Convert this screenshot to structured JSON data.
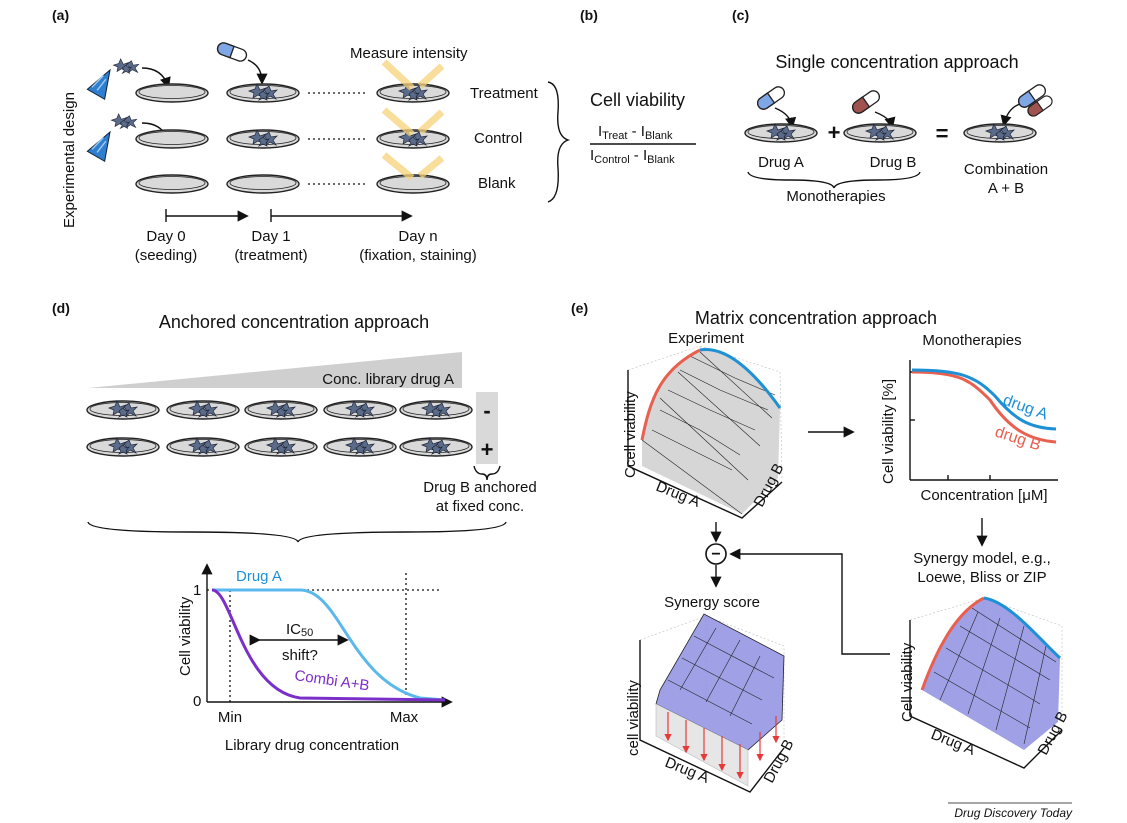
{
  "panels": {
    "a": "(a)",
    "b": "(b)",
    "c": "(c)",
    "d": "(d)",
    "e": "(e)"
  },
  "panel_a": {
    "side_label": "Experimental design",
    "measure": "Measure intensity",
    "rows": [
      "Treatment",
      "Control",
      "Blank"
    ],
    "days": [
      {
        "day": "Day 0",
        "note": "(seeding)"
      },
      {
        "day": "Day 1",
        "note": "(treatment)"
      },
      {
        "day": "Day n",
        "note": "(fixation, staining)"
      }
    ]
  },
  "panel_b": {
    "title": "Cell viability",
    "num_i": "I",
    "num_sub1": "Treat",
    "num_mid": " - I",
    "num_sub2": "Blank",
    "den_i": "I",
    "den_sub1": "Control",
    "den_mid": " - I",
    "den_sub2": "Blank"
  },
  "panel_c": {
    "title": "Single concentration approach",
    "drug_a": "Drug A",
    "drug_b": "Drug B",
    "plus": "+",
    "equals": "=",
    "monotherapies": "Monotherapies",
    "combination_1": "Combination",
    "combination_2": "A + B"
  },
  "panel_d": {
    "title": "Anchored concentration approach",
    "library": "Conc. library drug A",
    "minus": "-",
    "plus": "+",
    "anchor_1": "Drug B anchored",
    "anchor_2": "at fixed conc.",
    "chart": {
      "ylabel": "Cell viability",
      "xlabel": "Library drug concentration",
      "y_top": "1",
      "y_bottom": "0",
      "x_min": "Min",
      "x_max": "Max",
      "ic_main": "IC",
      "ic_sub": "50",
      "ic_shift": "shift?",
      "drug_a": "Drug A",
      "combi": "Combi A+B"
    }
  },
  "panel_e": {
    "title": "Matrix concentration approach",
    "experiment": "Experiment",
    "monotherapies": "Monotherapies",
    "exp_ylabel": "Ccell viability",
    "drug_a": "Drug A",
    "drug_b": "Drug B",
    "mono_ylabel": "Cell viability [%]",
    "mono_xlabel": "Concentration [μM]",
    "curve_a": "drug A",
    "curve_b": "drug B",
    "model_1": "Synergy model, e.g.,",
    "model_2": "Loewe, Bliss or ZIP",
    "synergy": "Synergy score",
    "syn_ylabel": "cell viability",
    "ref_ylabel": "Cell viability",
    "minus_sign": "−"
  },
  "footer": "Drug Discovery Today",
  "colors": {
    "drug_a_blue": "#1e90d6",
    "drug_b_red": "#e8604f",
    "combi_purple": "#7b2fc9",
    "surface_gray": "#d6d6d6",
    "surface_purple": "#8f8fe3",
    "light_yellow": "#f8d47a"
  }
}
